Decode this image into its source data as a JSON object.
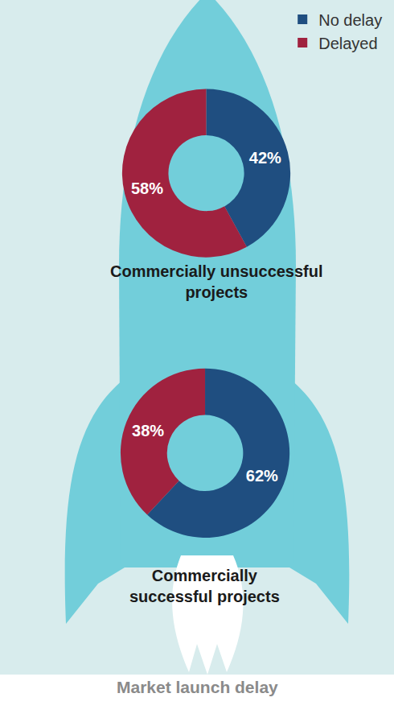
{
  "caption": "Market launch delay",
  "legend": "top right",
  "chart_data": [
    {
      "type": "pie",
      "title": "Commercially unsuccessful projects",
      "categories": [
        "No delay",
        "Delayed"
      ],
      "values": [
        42,
        58
      ],
      "value_labels": [
        "42%",
        "58%"
      ],
      "colors": [
        "#1f4e80",
        "#a0223f"
      ],
      "data_labels": true
    },
    {
      "type": "pie",
      "title": "Commercially successful projects",
      "categories": [
        "No delay",
        "Delayed"
      ],
      "values": [
        62,
        38
      ],
      "value_labels": [
        "62%",
        "38%"
      ],
      "colors": [
        "#1f4e80",
        "#a0223f"
      ],
      "data_labels": true
    }
  ]
}
